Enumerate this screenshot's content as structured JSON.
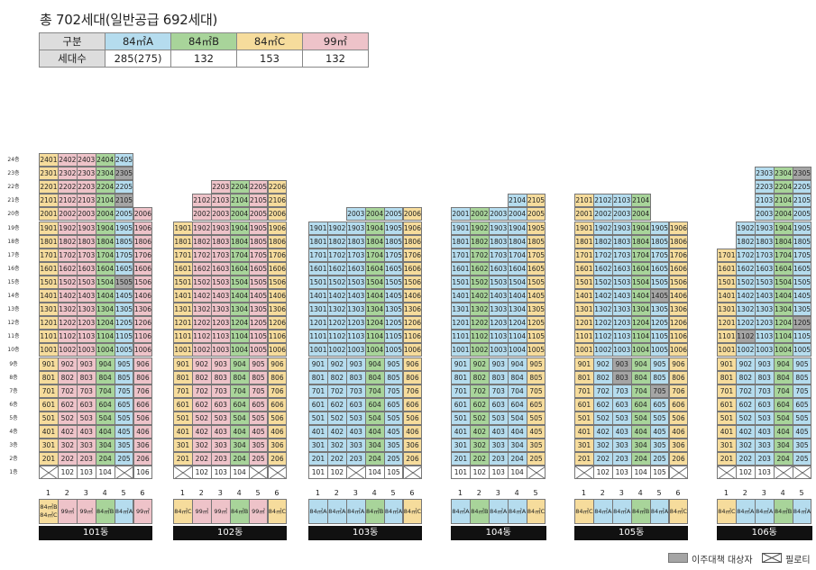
{
  "title": "총 702세대(일반공급 692세대)",
  "colors": {
    "A": "#b5dcee",
    "B": "#a8d49a",
    "C": "#f6dc9c",
    "D": "#eec3c9",
    "R": "#a5a5a5"
  },
  "summary": {
    "header": [
      "구분",
      "84㎡A",
      "84㎡B",
      "84㎡C",
      "99㎡"
    ],
    "row_label": "세대수",
    "values": [
      "285(275)",
      "132",
      "153",
      "132"
    ]
  },
  "floor_labels": [
    "24층",
    "23층",
    "22층",
    "21층",
    "20층",
    "19층",
    "18층",
    "17층",
    "16층",
    "15층",
    "14층",
    "13층",
    "12층",
    "11층",
    "10층",
    "9층",
    "8층",
    "7층",
    "6층",
    "5층",
    "4층",
    "3층",
    "2층",
    "1층"
  ],
  "buildings": [
    {
      "name": "101동",
      "columns": [
        "1",
        "2",
        "3",
        "4",
        "5",
        "6"
      ],
      "column_types": [
        "C",
        "D",
        "D",
        "B",
        "A",
        "D"
      ],
      "type_labels": [
        "84㎡B/84㎡C",
        "99㎡",
        "99㎡",
        "84㎡B",
        "84㎡A",
        "99㎡"
      ],
      "top_floors": [
        24,
        24,
        24,
        24,
        24,
        20
      ],
      "pilotis": [
        0,
        4
      ],
      "relocation": [
        "2105",
        "2305",
        "1505"
      ]
    },
    {
      "name": "102동",
      "columns": [
        "1",
        "2",
        "3",
        "4",
        "5",
        "6"
      ],
      "column_types": [
        "C",
        "D",
        "D",
        "B",
        "D",
        "C"
      ],
      "type_labels": [
        "84㎡C",
        "99㎡",
        "99㎡",
        "84㎡B",
        "99㎡",
        "84㎡C"
      ],
      "top_floors": [
        19,
        21,
        22,
        22,
        22,
        22
      ],
      "pilotis": [
        0,
        4,
        5
      ],
      "relocation": []
    },
    {
      "name": "103동",
      "columns": [
        "1",
        "2",
        "3",
        "4",
        "5",
        "6"
      ],
      "column_types": [
        "A",
        "A",
        "A",
        "B",
        "A",
        "C"
      ],
      "type_labels": [
        "84㎡A",
        "84㎡A",
        "84㎡A",
        "84㎡B",
        "84㎡A",
        "84㎡C"
      ],
      "top_floors": [
        19,
        19,
        20,
        20,
        20,
        20
      ],
      "pilotis": [
        2,
        5
      ],
      "relocation": []
    },
    {
      "name": "104동",
      "columns": [
        "1",
        "2",
        "3",
        "4",
        "5"
      ],
      "column_types": [
        "A",
        "B",
        "A",
        "A",
        "C"
      ],
      "type_labels": [
        "84㎡A",
        "84㎡B",
        "84㎡A",
        "84㎡A",
        "84㎡C"
      ],
      "top_floors": [
        20,
        20,
        20,
        21,
        21
      ],
      "pilotis": [
        4
      ],
      "relocation": []
    },
    {
      "name": "105동",
      "columns": [
        "1",
        "2",
        "3",
        "4",
        "5",
        "6"
      ],
      "column_types": [
        "C",
        "A",
        "A",
        "B",
        "A",
        "C"
      ],
      "type_labels": [
        "84㎡C",
        "84㎡A",
        "84㎡A",
        "84㎡B",
        "84㎡A",
        "84㎡C"
      ],
      "top_floors": [
        21,
        21,
        21,
        21,
        19,
        19
      ],
      "pilotis": [
        0,
        5
      ],
      "relocation": [
        "903",
        "803",
        "1405",
        "705"
      ]
    },
    {
      "name": "106동",
      "columns": [
        "1",
        "2",
        "3",
        "4",
        "5"
      ],
      "column_types": [
        "C",
        "A",
        "A",
        "B",
        "A"
      ],
      "type_labels": [
        "84㎡C",
        "84㎡A",
        "84㎡A",
        "84㎡B",
        "84㎡A"
      ],
      "top_floors": [
        17,
        19,
        23,
        23,
        23
      ],
      "pilotis": [
        0,
        3,
        4
      ],
      "relocation": [
        "2305",
        "1205",
        "1102"
      ]
    }
  ],
  "legend": {
    "relocation": "이주대책 대상자",
    "pilotis": "필로티"
  }
}
